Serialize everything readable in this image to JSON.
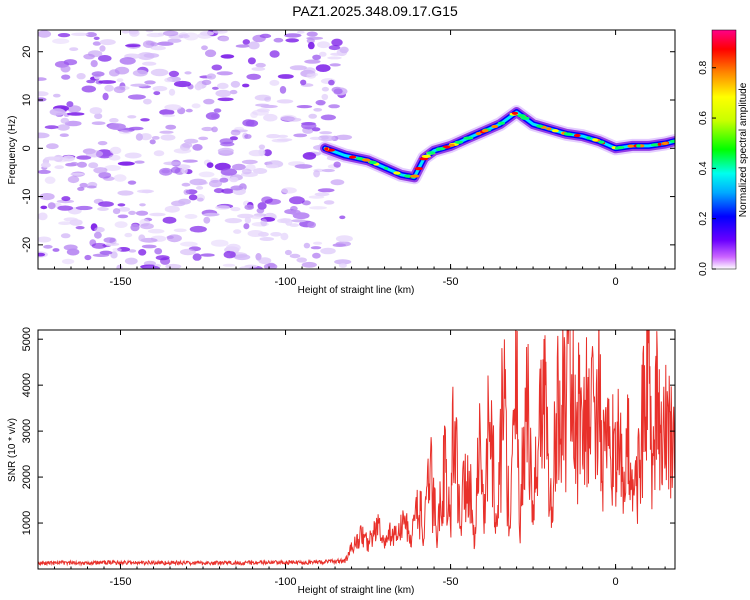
{
  "title": "PAZ1.2025.348.09.17.G15",
  "colors": {
    "line": "#e8302a",
    "noise": "#8a3cf0",
    "frame": "#000000"
  },
  "chart_data": [
    {
      "type": "heatmap",
      "xlabel": "Height of straight line (km)",
      "ylabel": "Frequency (Hz)",
      "xlim": [
        -175,
        18
      ],
      "ylim": [
        -25,
        24.5
      ],
      "xticks": [
        -150,
        -100,
        -50,
        0
      ],
      "yticks": [
        20,
        10,
        0,
        -10,
        -20
      ],
      "noise_region_x": [
        -175,
        -82
      ],
      "ridge": {
        "x": [
          -88,
          -82,
          -75,
          -70,
          -65,
          -61,
          -58,
          -55,
          -50,
          -45,
          -40,
          -35,
          -30,
          -25,
          -20,
          -15,
          -10,
          -5,
          0,
          5,
          10,
          15,
          18
        ],
        "y": [
          0,
          -1.5,
          -2.5,
          -4,
          -5.5,
          -6,
          -2,
          -0.5,
          0.5,
          2,
          3.5,
          5,
          7.5,
          5,
          4,
          3,
          2.5,
          1.5,
          0,
          0.5,
          0.5,
          1,
          1.5
        ]
      },
      "colorbar": {
        "label": "Normalized spectral amplitude",
        "range": [
          0,
          0.95
        ],
        "ticks": [
          0.0,
          0.2,
          0.4,
          0.6,
          0.8
        ]
      }
    },
    {
      "type": "line",
      "xlabel": "Height of straight line (km)",
      "ylabel": "SNR (10 * v/v)",
      "xlim": [
        -175,
        18
      ],
      "ylim": [
        0,
        5200
      ],
      "xticks": [
        -150,
        -100,
        -50,
        0
      ],
      "yticks": [
        1000,
        2000,
        3000,
        4000,
        5000
      ],
      "series": [
        {
          "name": "SNR",
          "x": [
            -175,
            -150,
            -125,
            -100,
            -90,
            -82,
            -80,
            -77,
            -75,
            -72,
            -70,
            -68,
            -66,
            -64,
            -62,
            -60,
            -58,
            -56,
            -54,
            -52,
            -50,
            -49,
            -47,
            -45,
            -43,
            -41,
            -40,
            -38,
            -36,
            -34,
            -32,
            -30,
            -29,
            -27,
            -25,
            -23,
            -21,
            -20,
            -18,
            -16,
            -15,
            -14,
            -13,
            -12,
            -11,
            -10,
            -8,
            -7,
            -6,
            -5,
            -4,
            -3,
            -2,
            0,
            2,
            4,
            6,
            8,
            10,
            11,
            12,
            13,
            14,
            15,
            16,
            18
          ],
          "y": [
            130,
            140,
            130,
            140,
            150,
            180,
            450,
            750,
            550,
            950,
            500,
            800,
            700,
            1100,
            600,
            1500,
            800,
            2050,
            700,
            2400,
            900,
            3600,
            1000,
            2400,
            800,
            2800,
            1100,
            3500,
            700,
            3900,
            800,
            4300,
            1000,
            3900,
            1100,
            3500,
            4000,
            900,
            3000,
            4300,
            2700,
            5200,
            3700,
            2500,
            3400,
            3700,
            3000,
            3500,
            3800,
            3700,
            2300,
            2500,
            2400,
            2900,
            2000,
            2600,
            1600,
            3000,
            4800,
            1500,
            3300,
            3500,
            2200,
            3000,
            3300,
            2600
          ]
        }
      ]
    }
  ]
}
